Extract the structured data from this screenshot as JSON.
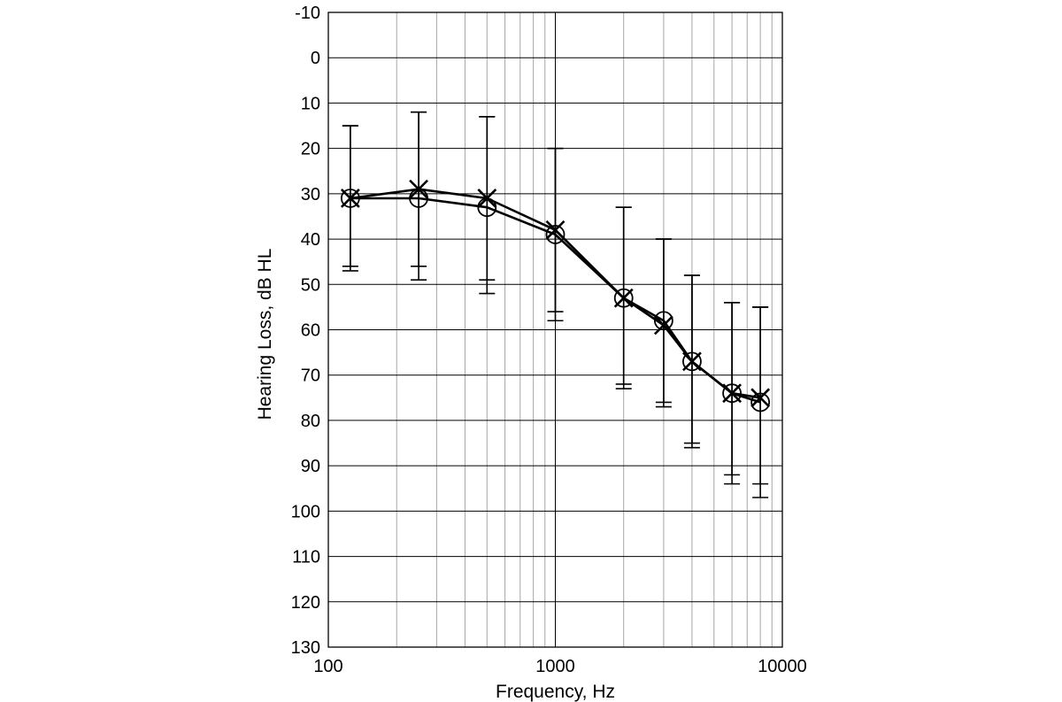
{
  "chart_data": {
    "type": "line",
    "title": "",
    "xlabel": "Frequency, Hz",
    "ylabel": "Hearing Loss, dB HL",
    "x_scale": "log",
    "xlim": [
      100,
      10000
    ],
    "ylim": [
      -10,
      130
    ],
    "y_inverted": true,
    "x_ticks": [
      "100",
      "1000",
      "10000"
    ],
    "y_ticks": [
      "-10",
      "0",
      "10",
      "20",
      "30",
      "40",
      "50",
      "60",
      "70",
      "80",
      "90",
      "100",
      "110",
      "120",
      "130"
    ],
    "grid": true,
    "legend": "none",
    "x": [
      125,
      250,
      500,
      1000,
      2000,
      3000,
      4000,
      6000,
      8000
    ],
    "series": [
      {
        "marker": "circle",
        "values": [
          31,
          31,
          33,
          39,
          53,
          58,
          67,
          74,
          76
        ],
        "error_low": [
          15,
          12,
          13,
          20,
          33,
          40,
          48,
          54,
          55
        ],
        "error_high": [
          47,
          49,
          52,
          58,
          73,
          77,
          86,
          94,
          97
        ]
      },
      {
        "marker": "x",
        "values": [
          31,
          29,
          31,
          38,
          53,
          59,
          67,
          74,
          75
        ],
        "error_low": [
          15,
          12,
          13,
          20,
          33,
          40,
          48,
          54,
          55
        ],
        "error_high": [
          46,
          46,
          49,
          56,
          72,
          76,
          85,
          92,
          94
        ]
      }
    ]
  }
}
